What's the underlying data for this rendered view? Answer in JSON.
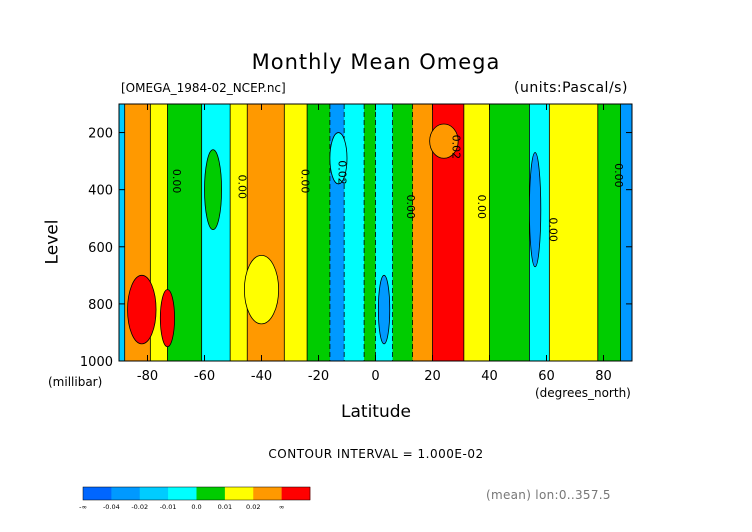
{
  "chart_data": {
    "type": "heatmap",
    "title": "Monthly Mean Omega",
    "file_label": "[OMEGA_1984-02_NCEP.nc]",
    "units_label": "(units:Pascal/s)",
    "xlabel": "Latitude",
    "ylabel": "Level",
    "y_unit": "(millibar)",
    "x_unit": "(degrees_north)",
    "xlim": [
      -90,
      90
    ],
    "ylim": [
      1000,
      100
    ],
    "x_ticks": [
      -80,
      -60,
      -40,
      -20,
      0,
      20,
      40,
      60,
      80
    ],
    "x_tick_labels": [
      "-80",
      "-60",
      "-40",
      "-20",
      "0",
      "20",
      "40",
      "60",
      "80"
    ],
    "y_ticks": [
      200,
      400,
      600,
      800,
      1000
    ],
    "y_tick_labels": [
      "200",
      "400",
      "600",
      "800",
      "1000"
    ],
    "contour_interval_label": "CONTOUR INTERVAL = 1.000E-02",
    "mean_label": "(mean) lon:0..357.5",
    "contour_labels": [
      {
        "text": "0.00",
        "x": -71,
        "y": 370
      },
      {
        "text": "0.00",
        "x": -48,
        "y": 390
      },
      {
        "text": "0.00",
        "x": -26,
        "y": 370
      },
      {
        "text": "0.02",
        "x": -13,
        "y": 340
      },
      {
        "text": "0.00",
        "x": 11,
        "y": 460
      },
      {
        "text": "0.02",
        "x": 27,
        "y": 250
      },
      {
        "text": "0.00",
        "x": 36,
        "y": 460
      },
      {
        "text": "0.00",
        "x": 61,
        "y": 540
      },
      {
        "text": "0.00",
        "x": 84,
        "y": 350
      }
    ],
    "bands": [
      {
        "x0": -90,
        "x1": -88,
        "color": "#00ccff"
      },
      {
        "x0": -88,
        "x1": -79,
        "color": "#ff9900"
      },
      {
        "x0": -79,
        "x1": -73,
        "color": "#ffff00"
      },
      {
        "x0": -73,
        "x1": -61,
        "color": "#00cc00"
      },
      {
        "x0": -61,
        "x1": -51,
        "color": "#00ffff"
      },
      {
        "x0": -51,
        "x1": -45,
        "color": "#ffff00"
      },
      {
        "x0": -45,
        "x1": -32,
        "color": "#ff9900"
      },
      {
        "x0": -32,
        "x1": -24,
        "color": "#ffff00"
      },
      {
        "x0": -24,
        "x1": -16,
        "color": "#00cc00"
      },
      {
        "x0": -16,
        "x1": -11,
        "color": "#0099ff"
      },
      {
        "x0": -11,
        "x1": -4,
        "color": "#00ffff"
      },
      {
        "x0": -4,
        "x1": 0,
        "color": "#00cc00"
      },
      {
        "x0": 0,
        "x1": 6,
        "color": "#00ffff"
      },
      {
        "x0": 6,
        "x1": 13,
        "color": "#00cc00"
      },
      {
        "x0": 13,
        "x1": 20,
        "color": "#ff9900"
      },
      {
        "x0": 20,
        "x1": 31,
        "color": "#ff0000"
      },
      {
        "x0": 31,
        "x1": 40,
        "color": "#ffff00"
      },
      {
        "x0": 40,
        "x1": 54,
        "color": "#00cc00"
      },
      {
        "x0": 54,
        "x1": 61,
        "color": "#00ffff"
      },
      {
        "x0": 61,
        "x1": 78,
        "color": "#ffff00"
      },
      {
        "x0": 78,
        "x1": 86,
        "color": "#00cc00"
      },
      {
        "x0": 86,
        "x1": 90,
        "color": "#0099ff"
      }
    ],
    "blobs": [
      {
        "x": -82,
        "y": 820,
        "rx": 5,
        "ry": 120,
        "color": "#ff0000"
      },
      {
        "x": -73,
        "y": 850,
        "rx": 2.5,
        "ry": 100,
        "color": "#ff0000"
      },
      {
        "x": -57,
        "y": 400,
        "rx": 3,
        "ry": 140,
        "color": "#00cc00"
      },
      {
        "x": -13,
        "y": 290,
        "rx": 3,
        "ry": 90,
        "color": "#00ffff"
      },
      {
        "x": 3,
        "y": 820,
        "rx": 2,
        "ry": 120,
        "color": "#0099ff"
      },
      {
        "x": 24,
        "y": 230,
        "rx": 5,
        "ry": 60,
        "color": "#ff9900"
      },
      {
        "x": 56,
        "y": 470,
        "rx": 2,
        "ry": 200,
        "color": "#0099ff"
      },
      {
        "x": -40,
        "y": 750,
        "rx": 6,
        "ry": 120,
        "color": "#ffff00"
      }
    ],
    "legend": {
      "labels": [
        "-∞",
        "-0.04",
        "-0.02",
        "-0.01",
        "0.0",
        "0.01",
        "0.02",
        "∞"
      ],
      "colors": [
        "#0066ff",
        "#0099ff",
        "#00ccff",
        "#00ffff",
        "#00cc00",
        "#ffff00",
        "#ff9900",
        "#ff0000"
      ]
    }
  }
}
